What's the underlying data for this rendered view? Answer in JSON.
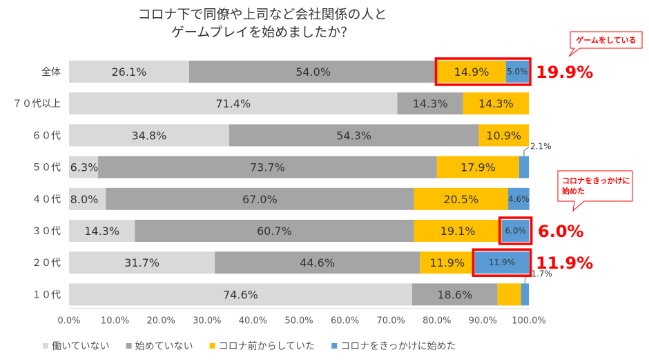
{
  "chart_data": {
    "type": "bar",
    "orientation": "horizontal",
    "stacked": true,
    "title_lines": [
      "コロナ下で同僚や上司など会社関係の人と",
      "ゲームプレイを始めましたか？"
    ],
    "categories": [
      "全体",
      "７０代以上",
      "６０代",
      "５０代",
      "４０代",
      "３０代",
      "２０代",
      "１０代"
    ],
    "series": [
      {
        "name": "働いていない",
        "color": "#d9d9d9",
        "values": [
          26.1,
          71.4,
          34.8,
          6.3,
          8.0,
          14.3,
          31.7,
          74.6
        ]
      },
      {
        "name": "始めていない",
        "color": "#a5a5a5",
        "values": [
          54.0,
          14.3,
          54.3,
          73.7,
          67.0,
          60.7,
          44.6,
          18.6
        ]
      },
      {
        "name": "コロナ前からしていた",
        "color": "#ffc000",
        "values": [
          14.9,
          14.3,
          10.9,
          17.9,
          20.5,
          19.1,
          11.9,
          5.1
        ]
      },
      {
        "name": "コロナをきっかけに始めた",
        "color": "#5b9bd5",
        "values": [
          5.0,
          0,
          0,
          2.1,
          4.6,
          6.0,
          11.9,
          1.7
        ]
      }
    ],
    "value_suffix": "%",
    "xlim": [
      0,
      100
    ],
    "xticks": [
      "0.0%",
      "10.0%",
      "20.0%",
      "30.0%",
      "40.0%",
      "50.0%",
      "60.0%",
      "70.0%",
      "80.0%",
      "90.0%",
      "100.0%"
    ],
    "legend_position": "bottom",
    "annotations": {
      "callout_playing": "ゲームをしている",
      "callout_started": "コロナをきっかけに始めた",
      "highlight_total": "19.9%",
      "highlight_30s": "6.0%",
      "highlight_20s": "11.9%"
    }
  }
}
